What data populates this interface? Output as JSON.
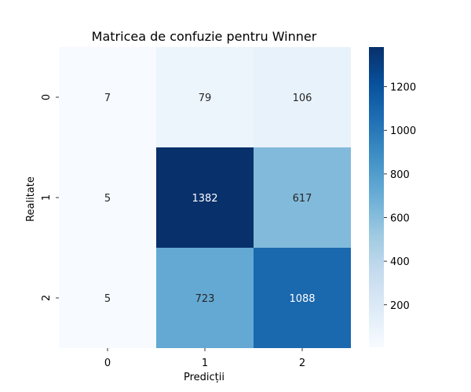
{
  "chart_data": {
    "type": "heatmap",
    "title": "Matricea de confuzie pentru Winner",
    "xlabel": "Predicții",
    "ylabel": "Realitate",
    "x_categories": [
      "0",
      "1",
      "2"
    ],
    "y_categories": [
      "0",
      "1",
      "2"
    ],
    "values": [
      [
        7,
        79,
        106
      ],
      [
        5,
        1382,
        617
      ],
      [
        5,
        723,
        1088
      ]
    ],
    "colorbar": {
      "min": 5,
      "max": 1382,
      "ticks": [
        "200",
        "400",
        "600",
        "800",
        "1000",
        "1200"
      ],
      "colormap": "Blues",
      "colors": [
        "#f7fbff",
        "#deebf7",
        "#c6dbef",
        "#9ecae1",
        "#6baed6",
        "#4292c6",
        "#2171b5",
        "#08519c",
        "#08306b"
      ]
    }
  }
}
